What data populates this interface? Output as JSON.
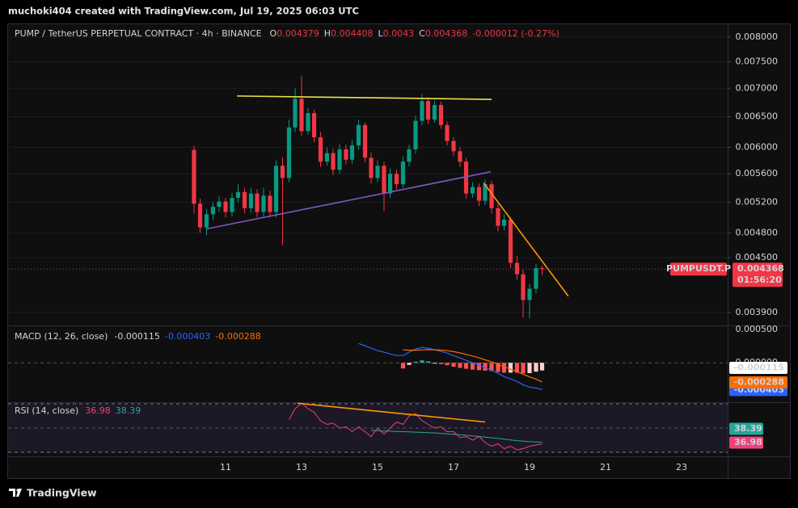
{
  "header": {
    "credit": "muchoki404 created with TradingView.com, Jul 19, 2025 06:03 UTC"
  },
  "footer": {
    "brand": "TradingView"
  },
  "chart_data": [
    {
      "type": "candlestick",
      "title": "PUMP / TetherUS PERPETUAL CONTRACT · 4h · BINANCE",
      "ohlc_labels": [
        "O",
        "H",
        "L",
        "C"
      ],
      "change": "-0.000012 (-0.27%)",
      "symbol": "PUMPUSDT.P",
      "countdown": "01:56:20",
      "up_color": "#089981",
      "down_color": "#f23645",
      "log_scale": true,
      "grid": true,
      "xlim": [
        5.277,
        24.213
      ],
      "xticks": [
        11,
        13,
        15,
        17,
        19,
        21,
        23
      ],
      "ylim": [
        0.003779,
        0.008272
      ],
      "yticks": [
        {
          "value": 0.008,
          "label": "0.008000"
        },
        {
          "value": 0.0075,
          "label": "0.007500"
        },
        {
          "value": 0.007,
          "label": "0.007000"
        },
        {
          "value": 0.0065,
          "label": "0.006500"
        },
        {
          "value": 0.006,
          "label": "0.006000"
        },
        {
          "value": 0.0056,
          "label": "0.005600"
        },
        {
          "value": 0.0052,
          "label": "0.005200"
        },
        {
          "value": 0.0048,
          "label": "0.004800"
        },
        {
          "value": 0.0045,
          "label": "0.004500"
        },
        {
          "value": 0.0039,
          "label": "0.003900"
        }
      ],
      "x": [
        10.17,
        10.33,
        10.5,
        10.67,
        10.83,
        11,
        11.17,
        11.33,
        11.5,
        11.67,
        11.83,
        12,
        12.17,
        12.33,
        12.5,
        12.67,
        12.83,
        13,
        13.17,
        13.33,
        13.5,
        13.67,
        13.83,
        14,
        14.17,
        14.33,
        14.5,
        14.67,
        14.83,
        15,
        15.17,
        15.33,
        15.5,
        15.67,
        15.83,
        16,
        16.17,
        16.33,
        16.5,
        16.67,
        16.83,
        17,
        17.17,
        17.33,
        17.5,
        17.67,
        17.83,
        18,
        18.17,
        18.33,
        18.5,
        18.67,
        18.83,
        19,
        19.17,
        19.33
      ],
      "open": [
        0.00596,
        0.00518,
        0.00487,
        0.00504,
        0.00514,
        0.00521,
        0.00507,
        0.00526,
        0.00534,
        0.00512,
        0.00532,
        0.00507,
        0.00529,
        0.00507,
        0.00572,
        0.00554,
        0.00632,
        0.00681,
        0.00626,
        0.00656,
        0.00616,
        0.00578,
        0.00591,
        0.00566,
        0.00597,
        0.00581,
        0.00603,
        0.00636,
        0.00584,
        0.00554,
        0.00572,
        0.00532,
        0.0056,
        0.00545,
        0.00578,
        0.00597,
        0.00643,
        0.00677,
        0.00645,
        0.0067,
        0.00636,
        0.0061,
        0.00594,
        0.00578,
        0.00532,
        0.00541,
        0.00522,
        0.00545,
        0.00512,
        0.00489,
        0.00497,
        0.00444,
        0.00431,
        0.00403,
        0.00415,
        0.004379
      ],
      "high": [
        0.00602,
        0.00525,
        0.00511,
        0.0052,
        0.00528,
        0.00526,
        0.00533,
        0.00545,
        0.0054,
        0.0054,
        0.00538,
        0.0054,
        0.00536,
        0.0058,
        0.00585,
        0.00645,
        0.007,
        0.00722,
        0.00665,
        0.00662,
        0.00625,
        0.006,
        0.00598,
        0.00605,
        0.00604,
        0.00612,
        0.00645,
        0.0064,
        0.00592,
        0.0058,
        0.00578,
        0.00568,
        0.00566,
        0.00586,
        0.00604,
        0.00652,
        0.0069,
        0.00684,
        0.00678,
        0.00676,
        0.00642,
        0.00616,
        0.006,
        0.00584,
        0.00548,
        0.00546,
        0.00552,
        0.0055,
        0.00518,
        0.00504,
        0.005,
        0.00452,
        0.00436,
        0.0042,
        0.00443,
        0.004408
      ],
      "low": [
        0.00505,
        0.0048,
        0.00477,
        0.00496,
        0.00507,
        0.005,
        0.00501,
        0.0052,
        0.00505,
        0.00506,
        0.005,
        0.00501,
        0.005,
        0.005,
        0.00465,
        0.00548,
        0.00625,
        0.00618,
        0.0062,
        0.00608,
        0.0057,
        0.00572,
        0.00558,
        0.0056,
        0.00574,
        0.00575,
        0.00596,
        0.00577,
        0.00546,
        0.00548,
        0.00508,
        0.00526,
        0.00538,
        0.0054,
        0.00571,
        0.0059,
        0.00636,
        0.00638,
        0.0064,
        0.0063,
        0.00603,
        0.00586,
        0.0057,
        0.00525,
        0.00526,
        0.00515,
        0.00516,
        0.00505,
        0.00482,
        0.00483,
        0.00438,
        0.00425,
        0.00385,
        0.00384,
        0.0041,
        0.0043
      ],
      "close": [
        0.00518,
        0.00487,
        0.00504,
        0.00514,
        0.00521,
        0.00507,
        0.00526,
        0.00534,
        0.00512,
        0.00532,
        0.00507,
        0.00529,
        0.00507,
        0.00572,
        0.00554,
        0.00632,
        0.00681,
        0.00626,
        0.00656,
        0.00616,
        0.00578,
        0.00591,
        0.00566,
        0.00597,
        0.00581,
        0.00603,
        0.00636,
        0.00584,
        0.00554,
        0.00572,
        0.00532,
        0.0056,
        0.00545,
        0.00578,
        0.00597,
        0.00643,
        0.00677,
        0.00645,
        0.0067,
        0.00636,
        0.0061,
        0.00594,
        0.00578,
        0.00532,
        0.00541,
        0.00522,
        0.00545,
        0.00512,
        0.00489,
        0.00497,
        0.00444,
        0.00431,
        0.00403,
        0.00415,
        0.004379,
        0.004368
      ],
      "trendlines": [
        {
          "color": "#e8e34a",
          "x": [
            11.3,
            18.0
          ],
          "y": [
            0.00686,
            0.0068
          ]
        },
        {
          "color": "#7e57c2",
          "x": [
            10.49,
            17.98
          ],
          "y": [
            0.00485,
            0.00563
          ]
        },
        {
          "color": "#ff9800",
          "x": [
            17.79,
            20.02
          ],
          "y": [
            0.00547,
            0.00407
          ]
        }
      ]
    },
    {
      "type": "macd",
      "title": "MACD (12, 26, close)",
      "ylim": [
        -0.00058,
        0.000537
      ],
      "yticks": [
        {
          "value": 0.0005,
          "label": "0.000500"
        },
        {
          "value": 0,
          "label": "0.000000"
        }
      ],
      "hist_up_color": "#26a69a",
      "hist_down_color": "#ff5252",
      "hist_fade_color": "#ffcdd2",
      "macd_color": "#2962ff",
      "signal_color": "#ff6d00",
      "histogram": [
        null,
        null,
        null,
        null,
        null,
        null,
        null,
        null,
        null,
        null,
        null,
        null,
        null,
        null,
        null,
        null,
        null,
        null,
        null,
        null,
        null,
        null,
        null,
        null,
        null,
        null,
        null,
        null,
        null,
        null,
        null,
        null,
        null,
        -8.5e-05,
        -3.1e-05,
        1.7e-05,
        3.7e-05,
        2.2e-05,
        -1e-06,
        -2e-05,
        -3.6e-05,
        -5.8e-05,
        -7.6e-05,
        -9e-05,
        -0.000102,
        -0.000111,
        -0.000118,
        -0.000124,
        -0.000138,
        -0.000149,
        -0.000148,
        -0.000148,
        -0.000158,
        -0.000155,
        -0.000133,
        -0.000115
      ],
      "macd": [
        null,
        null,
        null,
        null,
        null,
        null,
        null,
        null,
        null,
        null,
        null,
        null,
        null,
        null,
        null,
        null,
        null,
        null,
        null,
        null,
        null,
        null,
        null,
        null,
        null,
        null,
        0.00029,
        0.000256,
        0.00022,
        0.000183,
        0.000159,
        0.000134,
        0.00011,
        0.00011,
        0.000159,
        0.000207,
        0.000232,
        0.00022,
        0.000195,
        0.000171,
        0.000146,
        0.00011,
        7.3e-05,
        3.7e-05,
        0,
        -3.7e-05,
        -7.3e-05,
        -0.00011,
        -0.000159,
        -0.000207,
        -0.000244,
        -0.000281,
        -0.00033,
        -0.000366,
        -0.000378,
        -0.000403
      ],
      "signal": [
        null,
        null,
        null,
        null,
        null,
        null,
        null,
        null,
        null,
        null,
        null,
        null,
        null,
        null,
        null,
        null,
        null,
        null,
        null,
        null,
        null,
        null,
        null,
        null,
        null,
        null,
        null,
        null,
        null,
        null,
        null,
        null,
        null,
        0.000195,
        0.00019,
        0.00019,
        0.000195,
        0.000198,
        0.000196,
        0.000191,
        0.000182,
        0.000168,
        0.000149,
        0.000127,
        0.000102,
        7.4e-05,
        4.5e-05,
        1.4e-05,
        -2.1e-05,
        -5.8e-05,
        -9.6e-05,
        -0.000133,
        -0.000172,
        -0.000211,
        -0.000245,
        -0.000288
      ]
    },
    {
      "type": "rsi",
      "title": "RSI (14, close)",
      "ylim": [
        27.33,
        70.67
      ],
      "rsi_color": "#f0407a",
      "ma_color": "#26a69a",
      "band_color": "#ff9800",
      "rsi": [
        null,
        null,
        null,
        null,
        null,
        null,
        null,
        null,
        null,
        null,
        null,
        null,
        null,
        null,
        null,
        57,
        66,
        70.5,
        66,
        63,
        56,
        53,
        54,
        50,
        51,
        47,
        51,
        47,
        43,
        50,
        45,
        50,
        55,
        53,
        60,
        62,
        56,
        53,
        50,
        51,
        47,
        47,
        42,
        43,
        40,
        43,
        38,
        35,
        37,
        33,
        35,
        32,
        33,
        35,
        36,
        36.98
      ],
      "rsi_ma": [
        null,
        null,
        null,
        null,
        null,
        null,
        null,
        null,
        null,
        null,
        null,
        null,
        null,
        null,
        null,
        null,
        null,
        null,
        null,
        null,
        null,
        null,
        null,
        null,
        null,
        null,
        null,
        null,
        48,
        47.8,
        47.6,
        47.4,
        47.2,
        47,
        46.8,
        46.6,
        46.4,
        46.2,
        46,
        45.6,
        45.2,
        44.8,
        44.4,
        44,
        43.5,
        43,
        42.5,
        42,
        41.4,
        40.8,
        40.2,
        39.6,
        39.1,
        38.7,
        38.5,
        38.39
      ],
      "trendlines": [
        {
          "x": [
            12.89,
            17.83
          ],
          "y": [
            70.5,
            55
          ]
        }
      ]
    }
  ]
}
